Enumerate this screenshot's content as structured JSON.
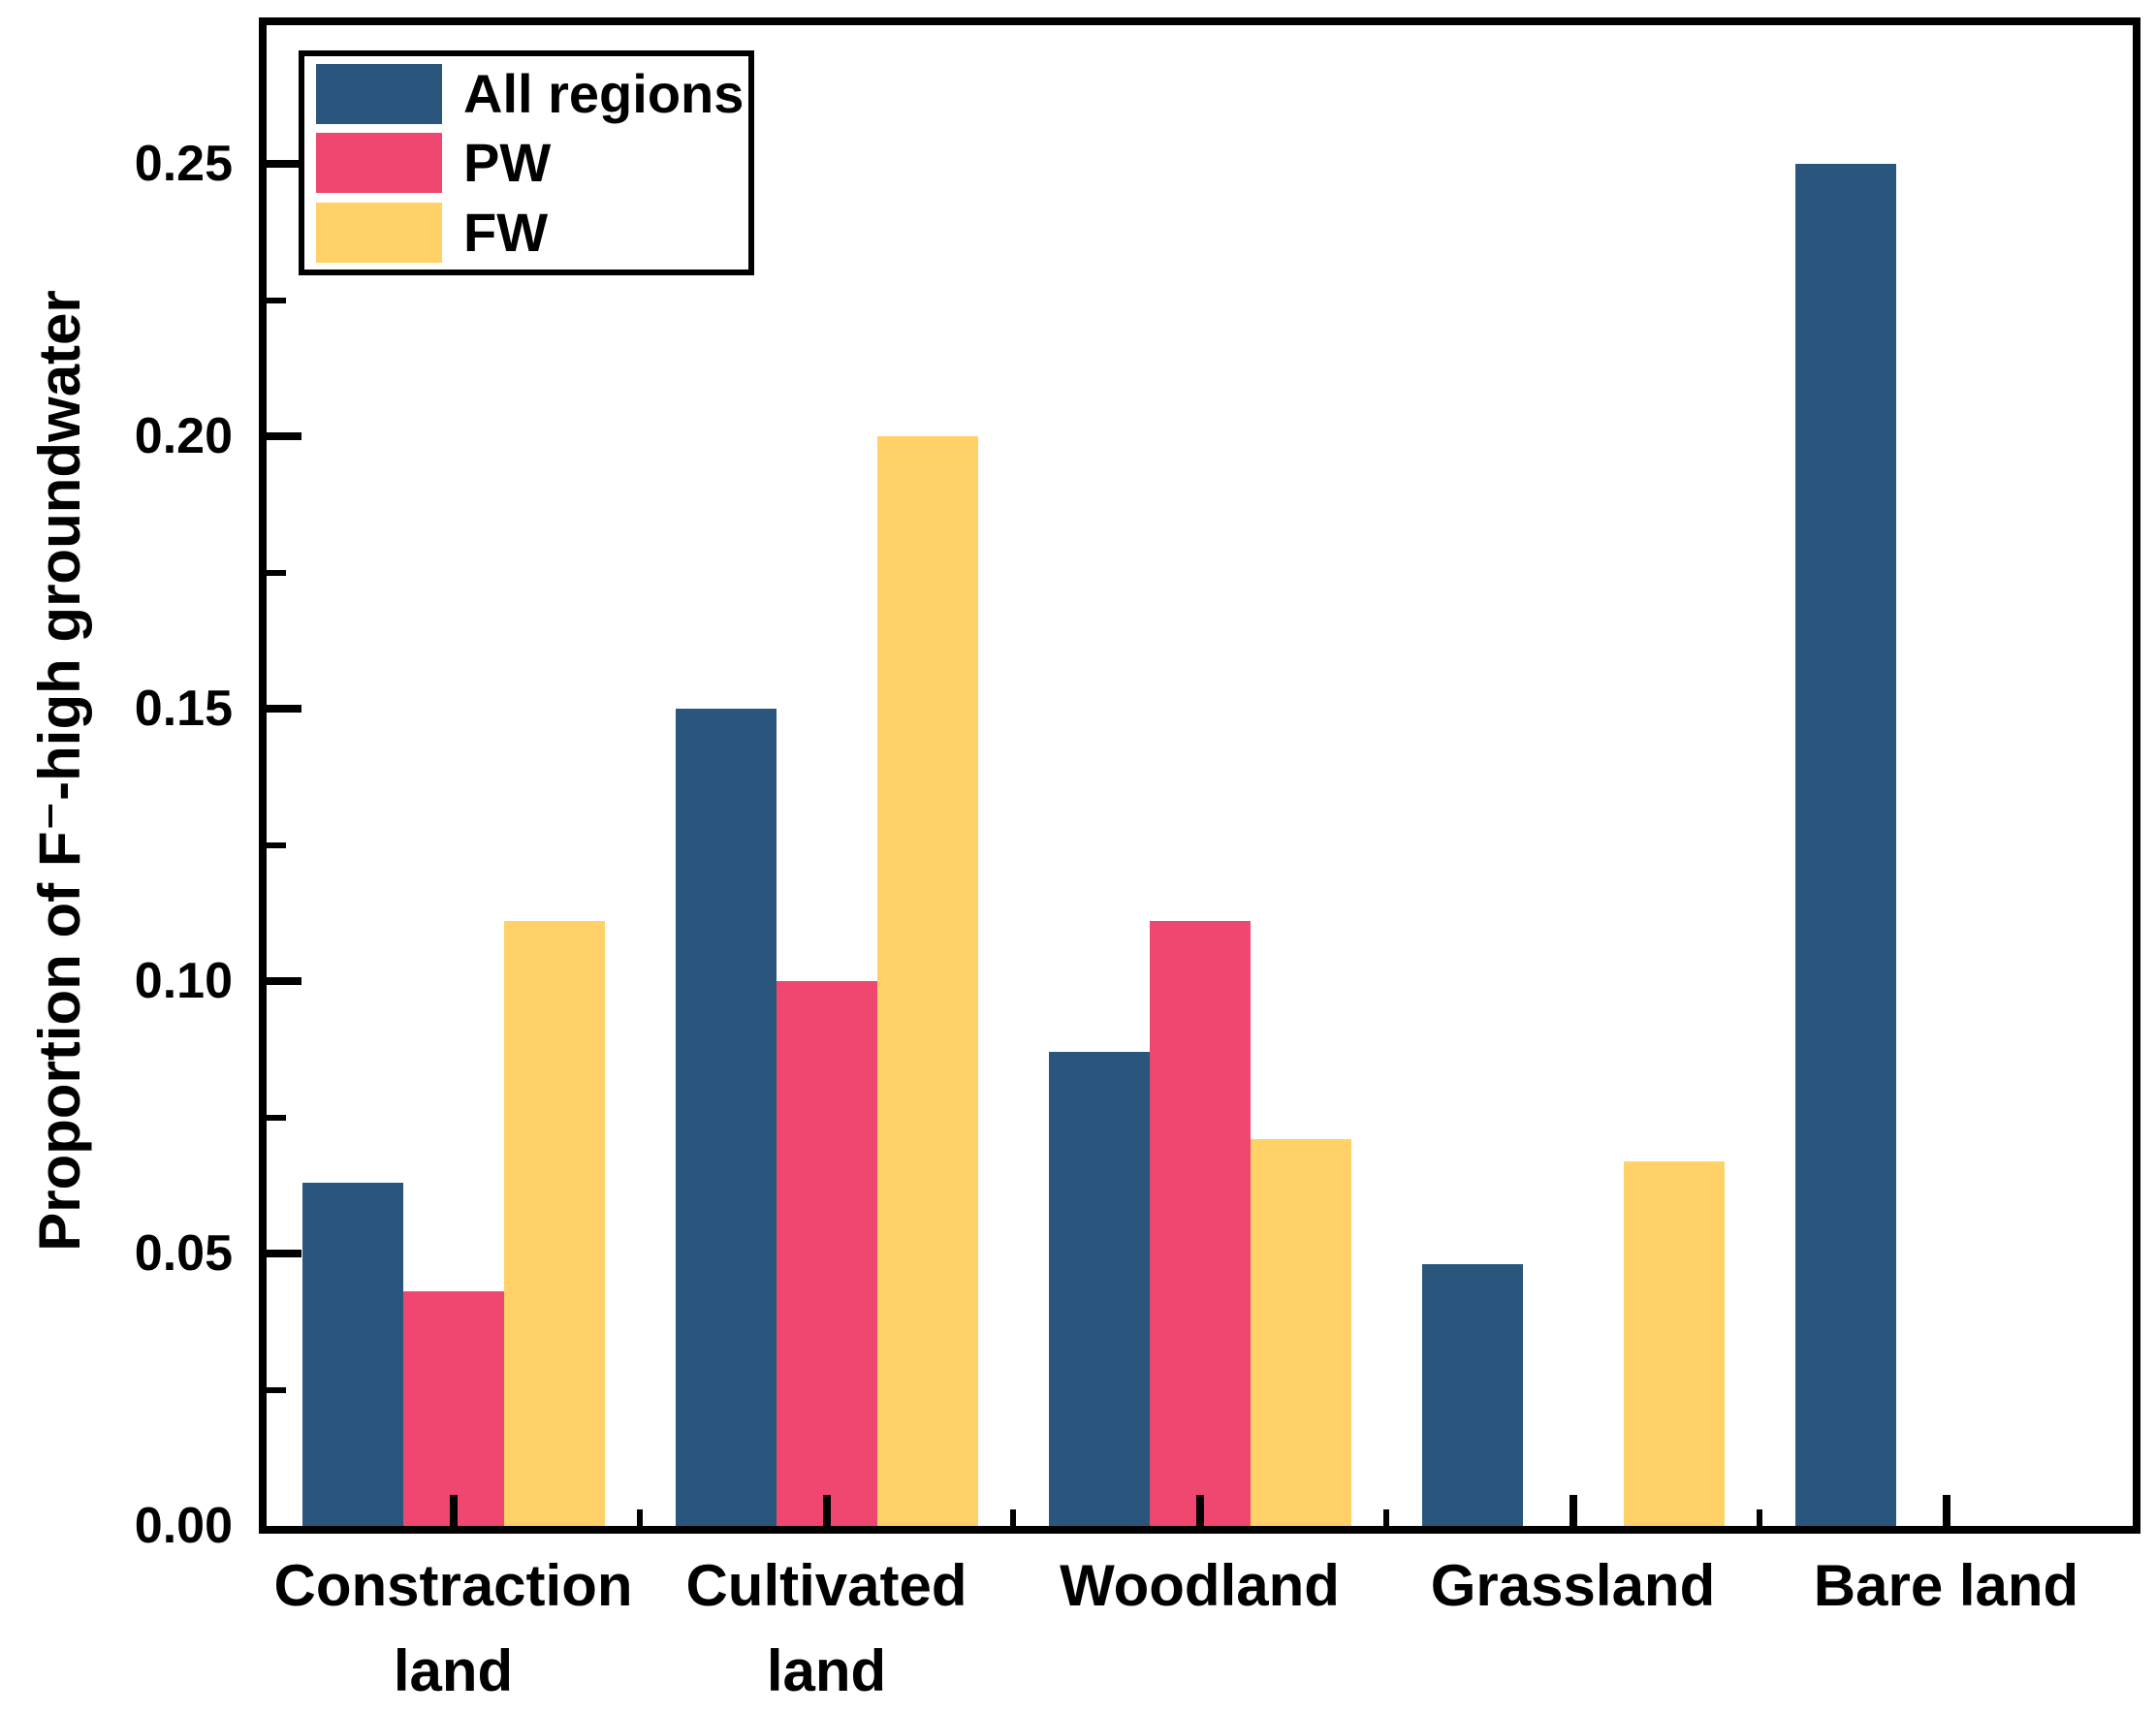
{
  "chart_data": {
    "type": "bar",
    "title": "",
    "xlabel": "",
    "ylabel": "Proportion of F⁻-high groundwater",
    "ylim": [
      0,
      0.2755
    ],
    "grid": false,
    "legend_position": "top-left",
    "frame": "full-box",
    "tick_direction": "in",
    "categories": [
      "Constraction land",
      "Cultivated land",
      "Woodland",
      "Grassland",
      "Bare land"
    ],
    "categories_display": [
      "Constraction\nland",
      "Cultivated\nland",
      "Woodland",
      "Grassland",
      "Bare land"
    ],
    "series": [
      {
        "name": "All regions",
        "color": "#2A567D",
        "values": [
          0.063,
          0.15,
          0.087,
          0.048,
          0.25
        ]
      },
      {
        "name": "PW",
        "color": "#EF476F",
        "values": [
          0.043,
          0.1,
          0.111,
          null,
          null
        ]
      },
      {
        "name": "FW",
        "color": "#FFD166",
        "values": [
          0.111,
          0.2,
          0.071,
          0.067,
          null
        ]
      }
    ],
    "y_major_ticks": [
      0.0,
      0.05,
      0.1,
      0.15,
      0.2,
      0.25
    ],
    "y_tick_labels": [
      "0.00",
      "0.05",
      "0.10",
      "0.15",
      "0.20",
      "0.25"
    ],
    "y_minor_ticks": [
      0.025,
      0.075,
      0.125,
      0.175,
      0.225
    ]
  },
  "colors": {
    "axis": "#000000",
    "background": "#ffffff",
    "all_regions": "#2A567D",
    "pw": "#EF476F",
    "fw": "#FFD166"
  }
}
